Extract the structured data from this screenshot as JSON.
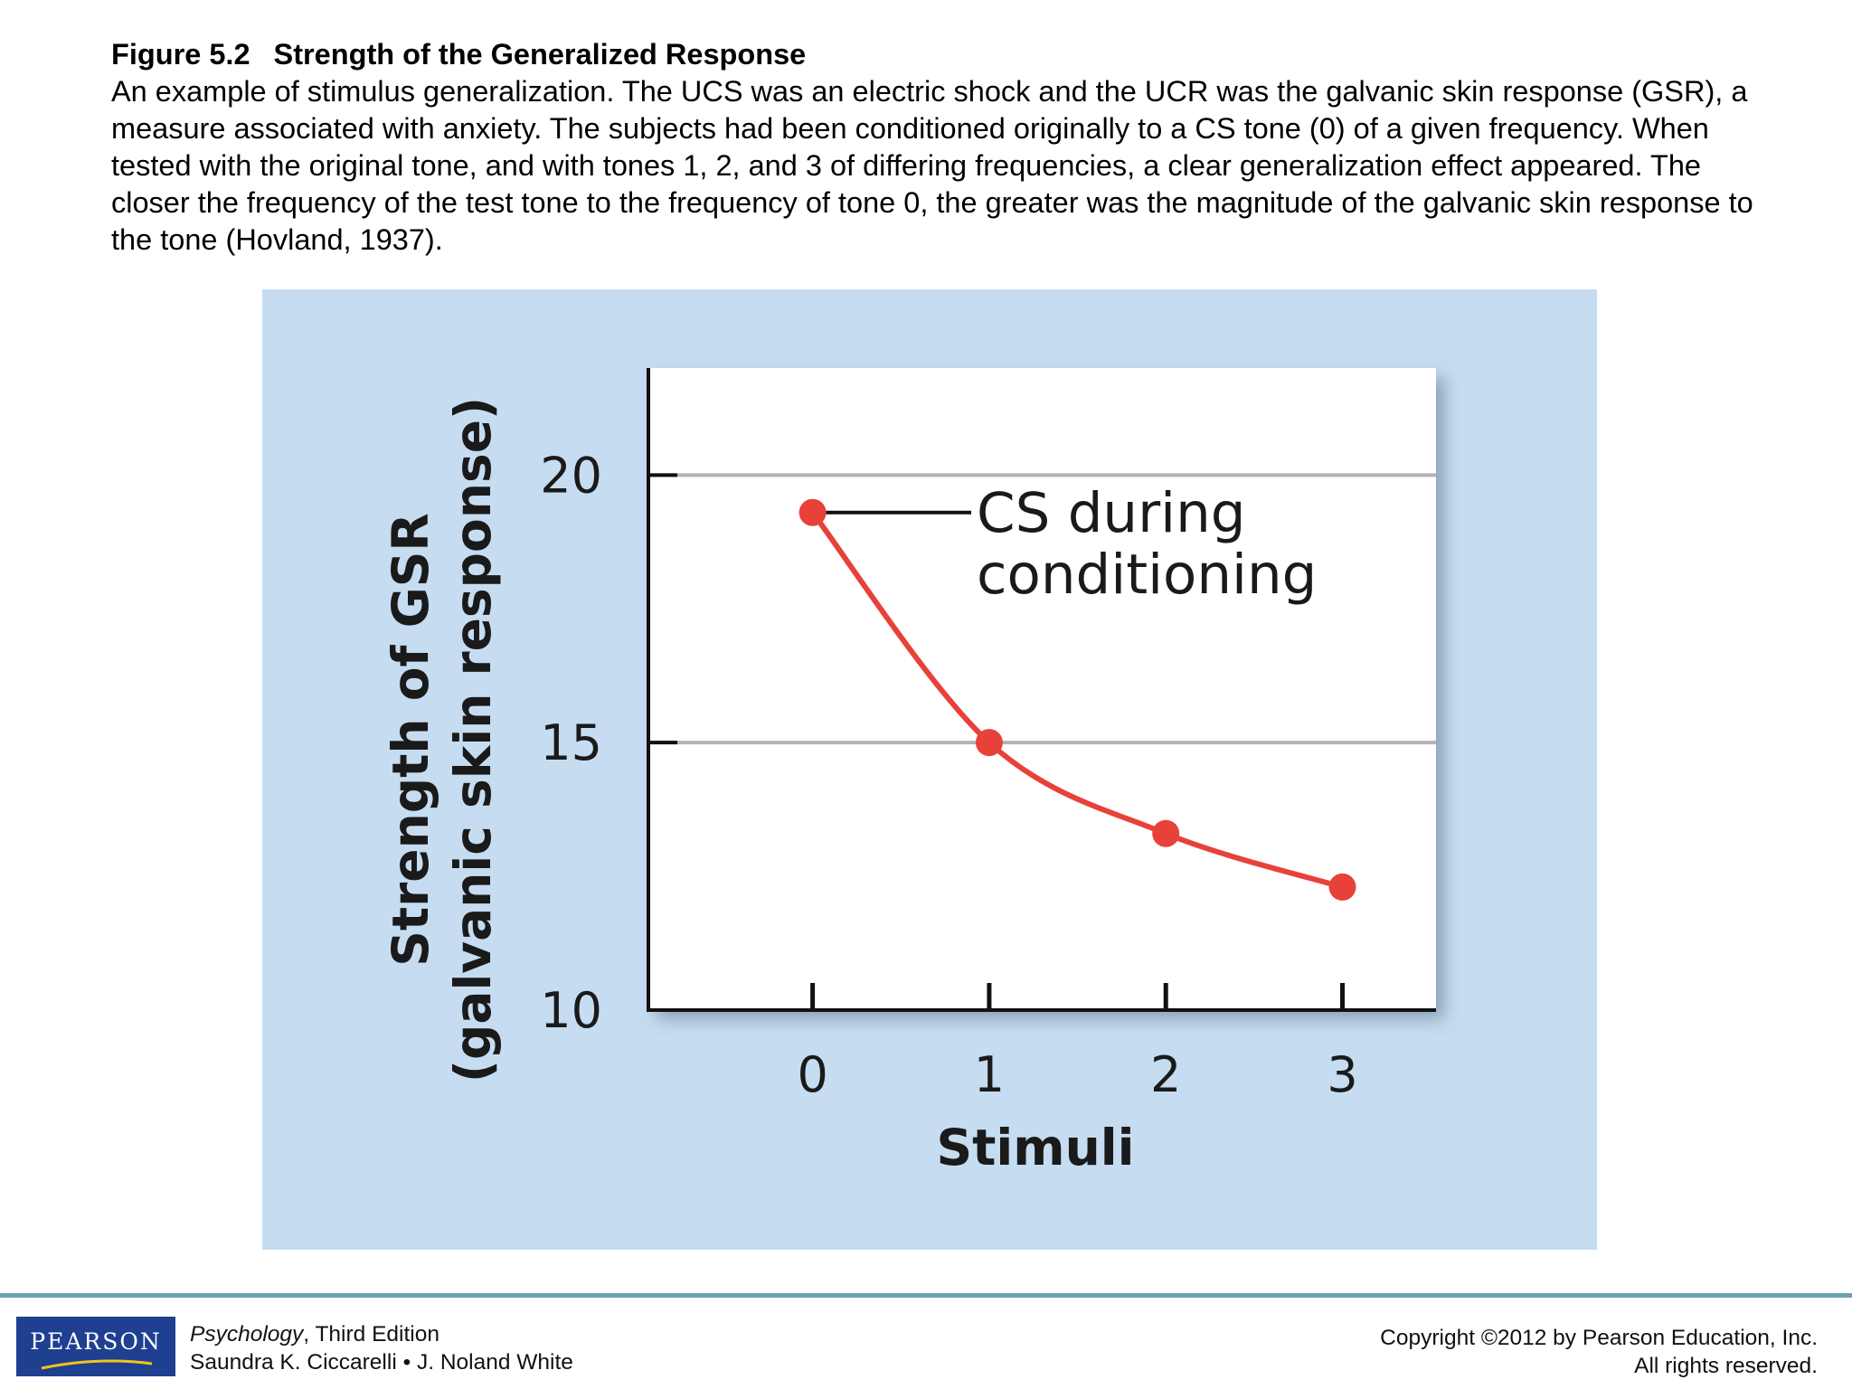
{
  "caption": {
    "figure_label": "Figure 5.2",
    "figure_title": "Strength of the Generalized Response",
    "description": "An example of stimulus generalization. The UCS was an electric shock and the UCR was the galvanic skin response (GSR), a measure associated with anxiety. The subjects had been conditioned originally to a CS tone (0) of a given frequency. When tested with the original tone, and with tones 1, 2, and 3 of differing frequencies, a clear generalization effect appeared. The closer the frequency of the test tone to the frequency of tone 0, the greater was the magnitude of the galvanic skin response to the tone (Hovland, 1937)."
  },
  "chart_data": {
    "type": "line",
    "x": [
      0,
      1,
      2,
      3
    ],
    "series": [
      {
        "values": [
          19.3,
          15.0,
          13.3,
          12.3
        ]
      }
    ],
    "xlabel": "Stimuli",
    "ylabel_line1": "Strength of GSR",
    "ylabel_line2": "(galvanic skin response)",
    "xlim": [
      -0.93,
      3.53
    ],
    "ylim": [
      10,
      22
    ],
    "yticks": [
      10,
      15,
      20
    ],
    "xticks": [
      0,
      1,
      2,
      3
    ],
    "gridlines_y": [
      15,
      20
    ],
    "annotation_line1": "CS during",
    "annotation_line2": "conditioning",
    "annotation_target_index": 0,
    "line_color": "#e8413a",
    "panel_color": "#c6dcf1",
    "grid_color": "#b3b3b3"
  },
  "footer": {
    "logo_text": "PEARSON",
    "book_title": "Psychology",
    "book_edition": ", Third Edition",
    "authors": "Saundra K. Ciccarelli • J. Noland White",
    "copyright_line1": "Copyright ©2012 by Pearson Education, Inc.",
    "copyright_line2": "All rights reserved."
  }
}
